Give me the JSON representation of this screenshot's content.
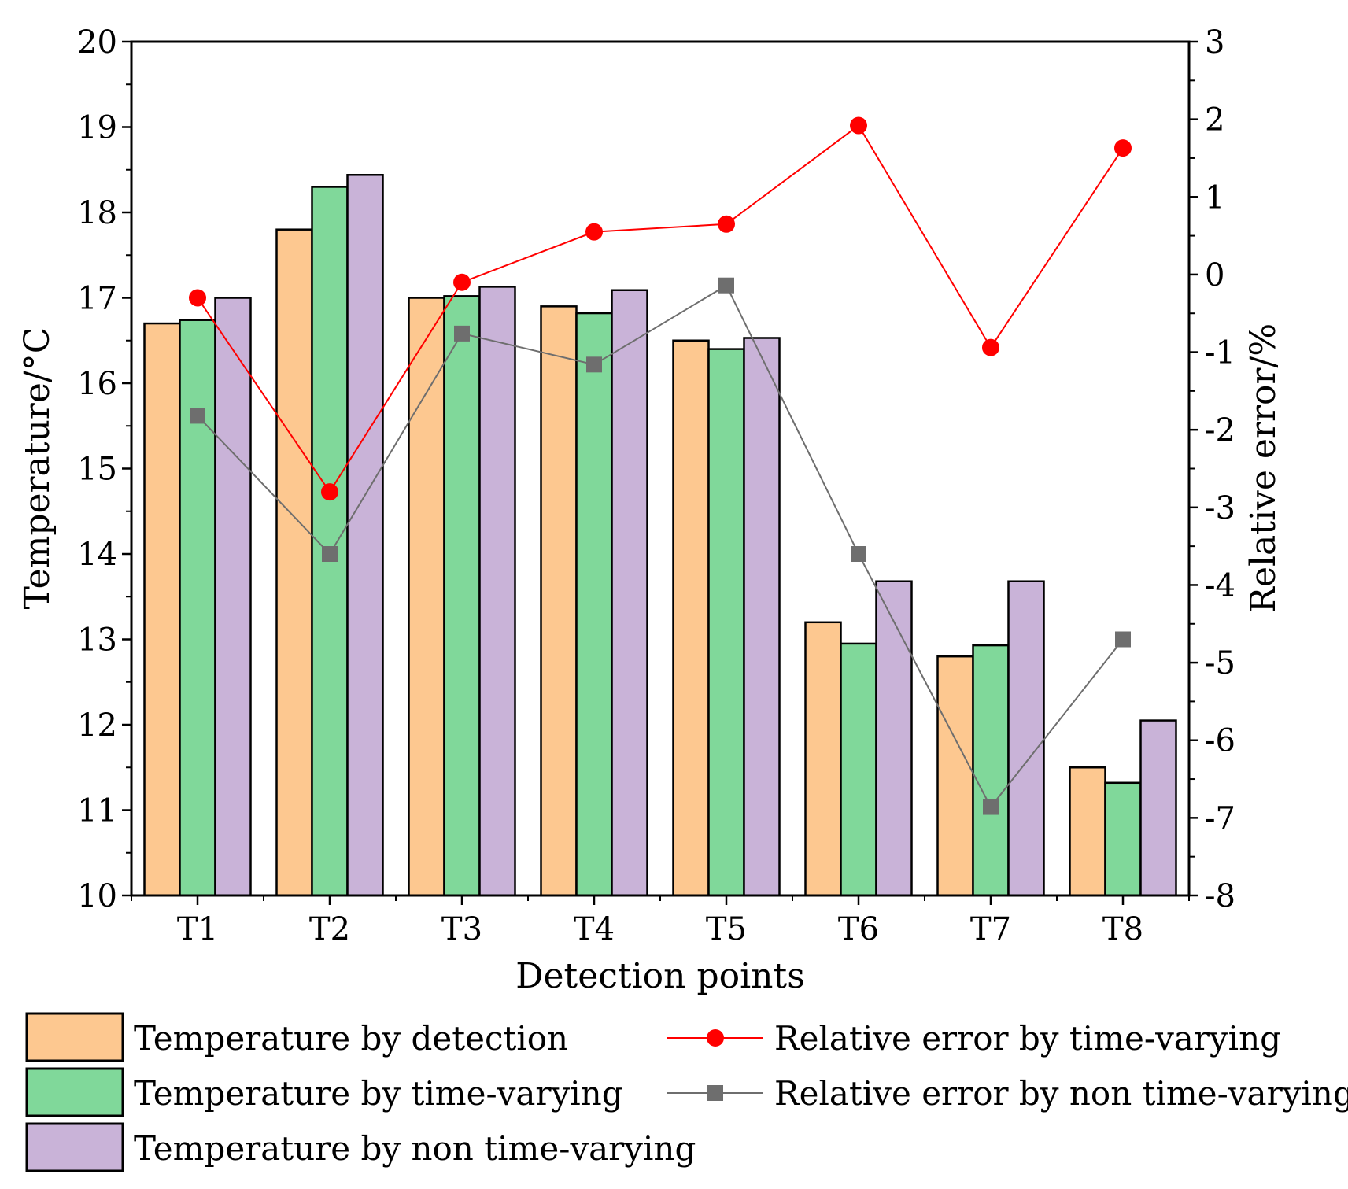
{
  "chart_data": {
    "type": "bar",
    "title": "",
    "xlabel": "Detection points",
    "ylabel": "Temperature/°C",
    "y2label": "Relative error/%",
    "categories": [
      "T1",
      "T2",
      "T3",
      "T4",
      "T5",
      "T6",
      "T7",
      "T8"
    ],
    "ylim": [
      10,
      20
    ],
    "yticks": [
      "10",
      "11",
      "12",
      "13",
      "14",
      "15",
      "16",
      "17",
      "18",
      "19",
      "20"
    ],
    "y2lim": [
      -8,
      3
    ],
    "y2ticks": [
      "-8",
      "-7",
      "-6",
      "-5",
      "-4",
      "-3",
      "-2",
      "-1",
      "0",
      "1",
      "2",
      "3"
    ],
    "series": [
      {
        "name": "Temperature by detection",
        "kind": "bar",
        "axis": "left",
        "color": "#FDC890",
        "values": [
          16.7,
          17.8,
          17.0,
          16.9,
          16.5,
          13.2,
          12.8,
          11.5
        ]
      },
      {
        "name": "Temperature by time-varying",
        "kind": "bar",
        "axis": "left",
        "color": "#80D89A",
        "values": [
          16.74,
          18.3,
          17.02,
          16.82,
          16.4,
          12.95,
          12.93,
          11.32
        ]
      },
      {
        "name": "Temperature by non time-varying",
        "kind": "bar",
        "axis": "left",
        "color": "#C9B3D8",
        "values": [
          17.0,
          18.44,
          17.13,
          17.09,
          16.53,
          13.68,
          13.68,
          12.05
        ]
      },
      {
        "name": "Relative error by time-varying",
        "kind": "line",
        "marker": "circle",
        "axis": "right",
        "color": "#FF0000",
        "values": [
          -0.3,
          -2.8,
          -0.1,
          0.55,
          0.65,
          1.92,
          -0.94,
          1.63
        ]
      },
      {
        "name": "Relative error by non time-varying",
        "kind": "line",
        "marker": "square",
        "axis": "right",
        "color": "#6E6E6E",
        "values": [
          -1.82,
          -3.6,
          -0.76,
          -1.16,
          -0.14,
          -3.6,
          -6.86,
          -4.7
        ]
      }
    ],
    "legend_position": "bottom"
  }
}
